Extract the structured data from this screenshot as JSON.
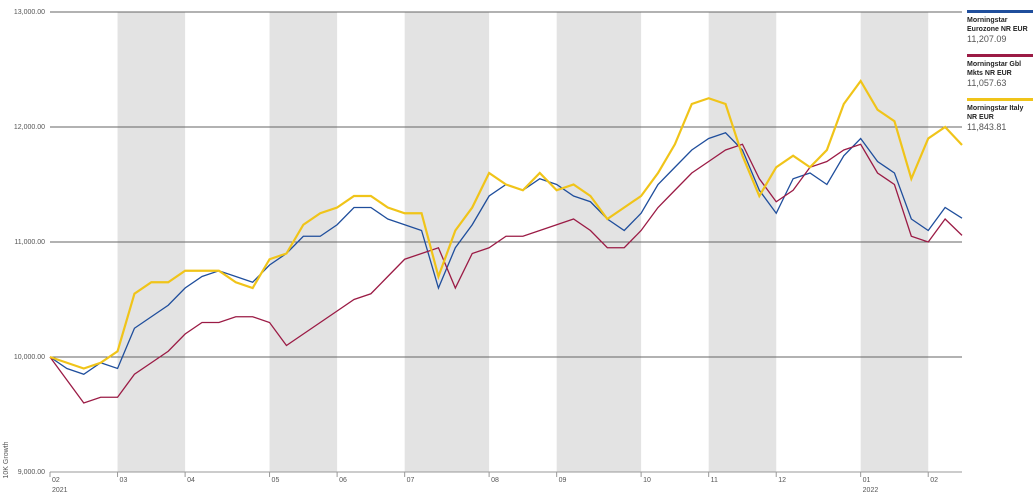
{
  "chart_data": {
    "type": "line",
    "y_label": "10K Growth",
    "categories": [
      "02",
      null,
      null,
      null,
      "03",
      null,
      null,
      null,
      "04",
      null,
      null,
      null,
      null,
      "05",
      null,
      null,
      null,
      "06",
      null,
      null,
      null,
      "07",
      null,
      null,
      null,
      null,
      "08",
      null,
      null,
      null,
      "09",
      null,
      null,
      null,
      null,
      "10",
      null,
      null,
      null,
      "11",
      null,
      null,
      null,
      "12",
      null,
      null,
      null,
      null,
      "01",
      null,
      null,
      null,
      "02",
      null,
      null
    ],
    "years": [
      {
        "at": 0,
        "label": "2021"
      },
      {
        "at": 48,
        "label": "2022"
      }
    ],
    "series": [
      {
        "name": "Morningstar Eurozone NR EUR",
        "color": "#1f4e9c",
        "last_value_label": "11,207.09",
        "values": [
          10000,
          9900,
          9850,
          9950,
          9900,
          10250,
          10350,
          10450,
          10600,
          10700,
          10750,
          10700,
          10650,
          10800,
          10900,
          11050,
          11050,
          11150,
          11300,
          11300,
          11200,
          11150,
          11100,
          10600,
          10950,
          11150,
          11400,
          11500,
          11450,
          11550,
          11500,
          11400,
          11350,
          11200,
          11100,
          11250,
          11500,
          11650,
          11800,
          11900,
          11950,
          11800,
          11450,
          11250,
          11550,
          11600,
          11500,
          11750,
          11900,
          11700,
          11600,
          11200,
          11100,
          11300,
          11207.09
        ]
      },
      {
        "name": "Morningstar Gbl Mkts NR EUR",
        "color": "#9b1b45",
        "last_value_label": "11,057.63",
        "values": [
          10000,
          9800,
          9600,
          9650,
          9650,
          9850,
          9950,
          10050,
          10200,
          10300,
          10300,
          10350,
          10350,
          10300,
          10100,
          10200,
          10300,
          10400,
          10500,
          10550,
          10700,
          10850,
          10900,
          10950,
          10600,
          10900,
          10950,
          11050,
          11050,
          11100,
          11150,
          11200,
          11100,
          10950,
          10950,
          11100,
          11300,
          11450,
          11600,
          11700,
          11800,
          11850,
          11550,
          11350,
          11450,
          11650,
          11700,
          11800,
          11850,
          11600,
          11500,
          11050,
          11000,
          11200,
          11057.63
        ]
      },
      {
        "name": "Morningstar Italy NR EUR",
        "color": "#f0c419",
        "last_value_label": "11,843.81",
        "values": [
          10000,
          9950,
          9900,
          9950,
          10050,
          10550,
          10650,
          10650,
          10750,
          10750,
          10750,
          10650,
          10600,
          10850,
          10900,
          11150,
          11250,
          11300,
          11400,
          11400,
          11300,
          11250,
          11250,
          10700,
          11100,
          11300,
          11600,
          11500,
          11450,
          11600,
          11450,
          11500,
          11400,
          11200,
          11300,
          11400,
          11600,
          11850,
          12200,
          12250,
          12200,
          11750,
          11400,
          11650,
          11750,
          11650,
          11800,
          12200,
          12400,
          12150,
          12050,
          11550,
          11900,
          12000,
          11843.81
        ]
      }
    ],
    "ylim": [
      9000,
      13000
    ],
    "yticks": [
      {
        "value": 9000,
        "label": "9,000.00"
      },
      {
        "value": 10000,
        "label": "10,000.00"
      },
      {
        "value": 11000,
        "label": "11,000.00"
      },
      {
        "value": 12000,
        "label": "12,000.00"
      },
      {
        "value": 13000,
        "label": "13,000.00"
      }
    ],
    "grid": true,
    "shaded_months": true,
    "legend": "right"
  }
}
